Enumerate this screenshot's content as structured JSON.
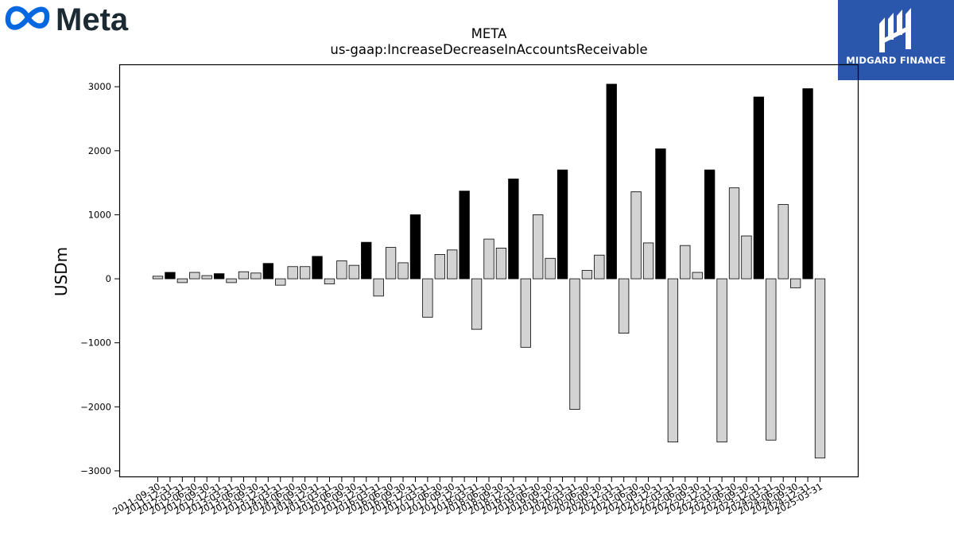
{
  "brand": {
    "logo_text": "Meta",
    "accent": "#0668e1",
    "text_color": "#1c2b33"
  },
  "partner": {
    "name": "MIDGARD FINANCE",
    "bg": "#2a56ac"
  },
  "chart_data": {
    "type": "bar",
    "title": "META",
    "subtitle": "us-gaap:IncreaseDecreaseInAccountsReceivable",
    "ylabel": "USDm",
    "xlabel": "",
    "ylim": [
      -3100,
      3350
    ],
    "yticks": [
      -3000,
      -2000,
      -1000,
      0,
      1000,
      2000,
      3000
    ],
    "grid": false,
    "colors": {
      "q4": "#000000",
      "other": "#d3d3d3",
      "edge": "#000000"
    },
    "categories": [
      "2011-09-30",
      "2011-12-31",
      "2012-03-31",
      "2012-06-30",
      "2012-09-30",
      "2012-12-31",
      "2013-03-31",
      "2013-06-30",
      "2013-09-30",
      "2013-12-31",
      "2014-03-31",
      "2014-06-30",
      "2014-09-30",
      "2014-12-31",
      "2015-03-31",
      "2015-06-30",
      "2015-09-30",
      "2015-12-31",
      "2016-03-31",
      "2016-06-30",
      "2016-09-30",
      "2016-12-31",
      "2017-03-31",
      "2017-06-30",
      "2017-09-30",
      "2017-12-31",
      "2018-03-31",
      "2018-06-30",
      "2018-09-30",
      "2018-12-31",
      "2019-03-31",
      "2019-06-30",
      "2019-09-30",
      "2019-12-31",
      "2020-03-31",
      "2020-06-30",
      "2020-09-30",
      "2020-12-31",
      "2021-03-31",
      "2021-06-30",
      "2021-09-30",
      "2021-12-31",
      "2022-03-31",
      "2022-06-30",
      "2022-09-30",
      "2022-12-31",
      "2023-03-31",
      "2023-06-30",
      "2023-09-30",
      "2023-12-31",
      "2024-03-31",
      "2024-06-30",
      "2024-09-30",
      "2024-12-31",
      "2025-03-31"
    ],
    "values": [
      40,
      100,
      -60,
      100,
      50,
      80,
      -60,
      110,
      90,
      240,
      -100,
      190,
      190,
      350,
      -80,
      280,
      210,
      570,
      -270,
      490,
      250,
      1000,
      -600,
      380,
      450,
      1370,
      -790,
      620,
      480,
      1560,
      -1070,
      1000,
      320,
      1700,
      -2040,
      130,
      370,
      3040,
      -850,
      1360,
      560,
      2030,
      -2550,
      520,
      100,
      1700,
      -2550,
      1420,
      670,
      2840,
      -2520,
      1160,
      -140,
      2970,
      -2800
    ]
  }
}
